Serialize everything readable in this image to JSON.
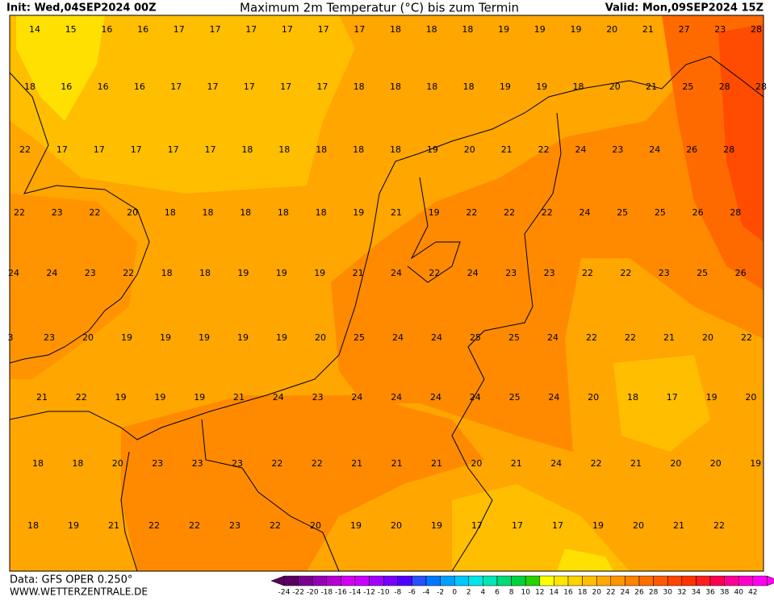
{
  "header": {
    "init": "Init: Wed,04SEP2024 00Z",
    "title": "Maximum 2m Temperatur (°C) bis zum Termin",
    "valid": "Valid: Mon,09SEP2024 15Z"
  },
  "map": {
    "labels": [
      [
        14,
        15,
        16,
        16,
        17,
        17,
        17,
        17,
        17,
        17,
        18,
        18,
        18,
        19,
        19,
        19,
        20,
        21,
        27,
        23,
        28
      ],
      [
        18,
        16,
        16,
        16,
        17,
        17,
        17,
        17,
        17,
        18,
        18,
        18,
        18,
        19,
        19,
        18,
        20,
        21,
        25,
        28,
        28
      ],
      [
        22,
        17,
        17,
        17,
        17,
        17,
        18,
        18,
        18,
        18,
        18,
        19,
        20,
        21,
        22,
        24,
        23,
        24,
        26,
        28
      ],
      [
        22,
        23,
        22,
        20,
        18,
        18,
        18,
        18,
        18,
        19,
        21,
        19,
        22,
        22,
        22,
        24,
        25,
        25,
        26,
        28
      ],
      [
        24,
        24,
        23,
        22,
        18,
        18,
        19,
        19,
        19,
        21,
        24,
        22,
        24,
        23,
        23,
        22,
        22,
        23,
        25,
        26
      ],
      [
        3,
        23,
        20,
        19,
        19,
        19,
        19,
        19,
        20,
        25,
        24,
        24,
        25,
        25,
        24,
        22,
        22,
        21,
        20,
        22
      ],
      [
        21,
        22,
        19,
        19,
        19,
        21,
        24,
        23,
        24,
        24,
        24,
        24,
        25,
        24,
        20,
        18,
        17,
        19,
        20
      ],
      [
        18,
        18,
        20,
        23,
        23,
        23,
        22,
        22,
        21,
        21,
        21,
        20,
        21,
        24,
        22,
        21,
        20,
        20,
        19
      ],
      [
        18,
        19,
        21,
        22,
        22,
        23,
        22,
        20,
        19,
        20,
        19,
        17,
        17,
        17,
        19,
        20,
        21,
        22
      ]
    ]
  },
  "footer": {
    "source": "Data: GFS OPER 0.250°",
    "site": "WWW.WETTERZENTRALE.DE"
  },
  "scale": {
    "labels": [
      -24,
      -22,
      -20,
      -18,
      -16,
      -14,
      -12,
      -10,
      -8,
      -6,
      -4,
      -2,
      0,
      2,
      4,
      6,
      8,
      10,
      12,
      14,
      16,
      18,
      20,
      22,
      24,
      26,
      28,
      30,
      32,
      34,
      36,
      38,
      40,
      42
    ],
    "colors": [
      "#5a0060",
      "#780090",
      "#9600b4",
      "#b400d2",
      "#d200f0",
      "#c800ff",
      "#a000ff",
      "#7800ff",
      "#5000ff",
      "#2850ff",
      "#0078ff",
      "#00a0ff",
      "#00c8ff",
      "#00e6e6",
      "#00e6b4",
      "#00dc78",
      "#00d23c",
      "#28d200",
      "#ffff00",
      "#ffe600",
      "#ffd200",
      "#ffbe00",
      "#ffaa00",
      "#ff9600",
      "#ff8200",
      "#ff6e00",
      "#ff5a00",
      "#ff4600",
      "#ff3200",
      "#ff1e1e",
      "#ff0050",
      "#ff0096",
      "#ff00c8",
      "#ff00f0"
    ]
  }
}
